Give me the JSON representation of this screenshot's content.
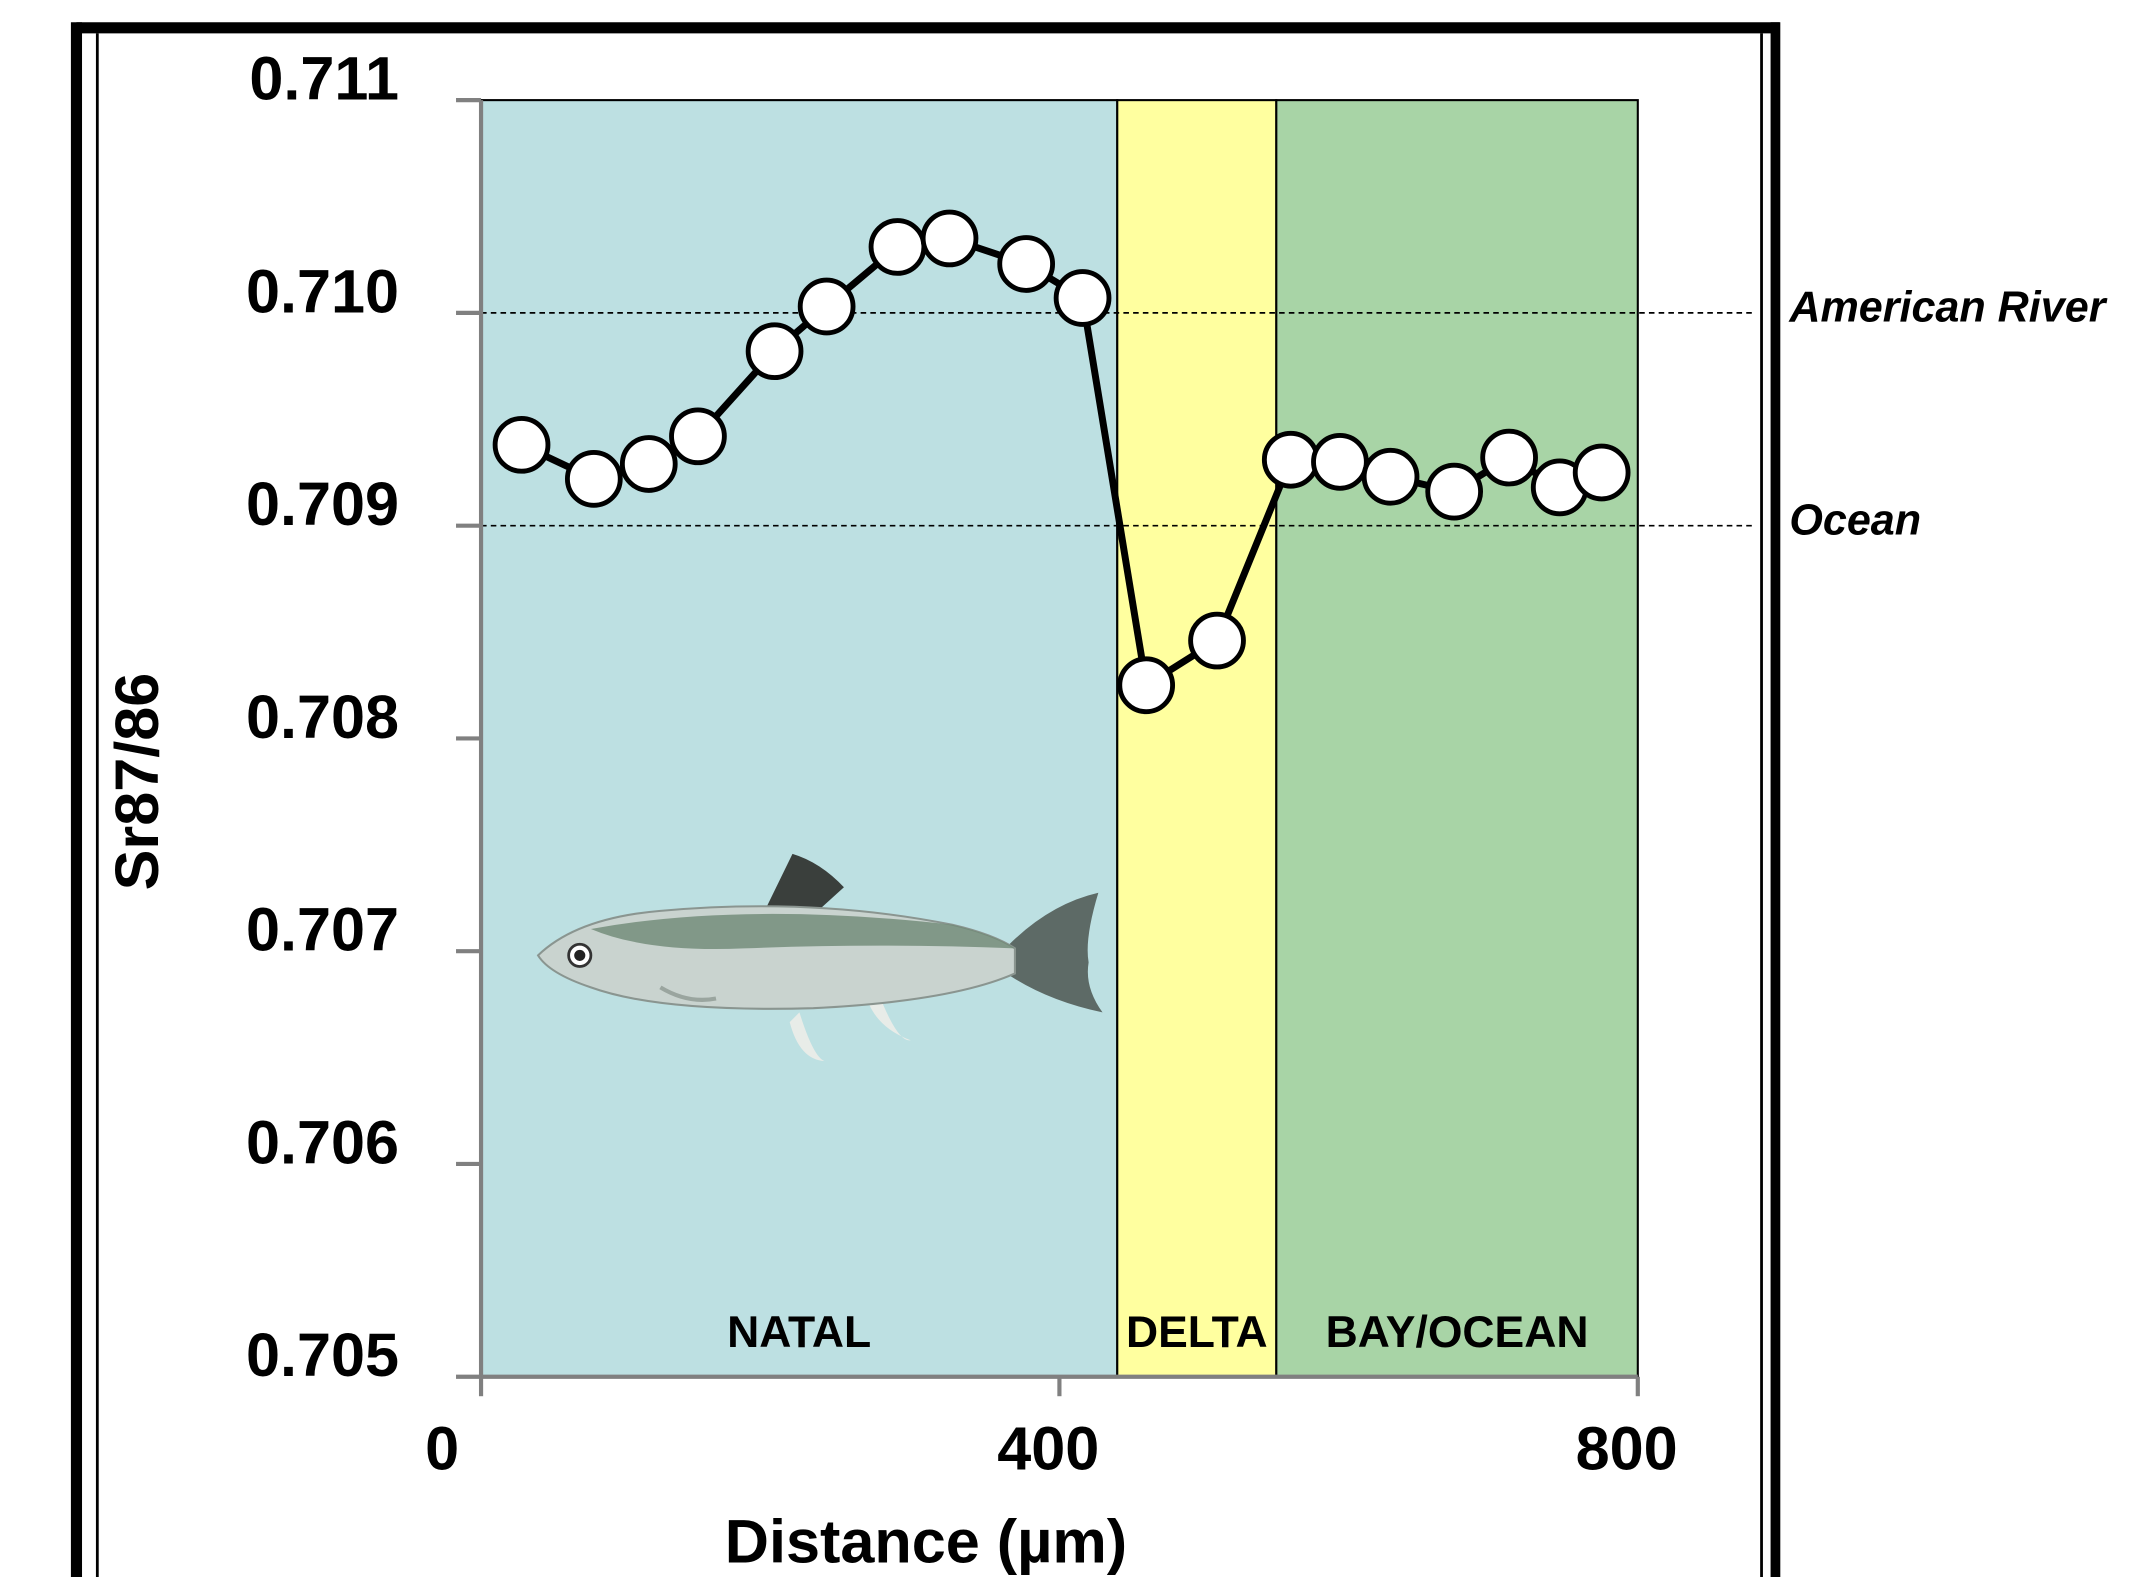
{
  "chart_data": {
    "type": "line",
    "xlabel": "Distance (µm)",
    "ylabel": "Sr87/86",
    "xlim": [
      0,
      800
    ],
    "ylim": [
      0.705,
      0.711
    ],
    "xticks": [
      0,
      400,
      800
    ],
    "yticks": [
      0.711,
      {
        "value": 0.71,
        "label": "0.710"
      },
      0.709,
      0.708,
      0.707,
      0.706,
      0.705
    ],
    "x": [
      28,
      78,
      116,
      150,
      203,
      239,
      288,
      324,
      377,
      416,
      460,
      509,
      560,
      594,
      629,
      673,
      711,
      746,
      775
    ],
    "values": [
      0.70938,
      0.70922,
      0.70929,
      0.70942,
      0.70982,
      0.71003,
      0.71031,
      0.71035,
      0.71023,
      0.71007,
      0.70825,
      0.70846,
      0.70931,
      0.7093,
      0.70923,
      0.70916,
      0.70932,
      0.70918,
      0.70925
    ],
    "color": "#000000",
    "marker_fill": "#ffffff",
    "regions": [
      {
        "label": "NATAL",
        "x": [
          0,
          440
        ],
        "color": "#bde0e2"
      },
      {
        "label": "DELTA",
        "x": [
          440,
          550
        ],
        "color": "#ffff9f"
      },
      {
        "label": "BAY/OCEAN",
        "x": [
          550,
          800
        ],
        "color": "#a8d4a6"
      }
    ],
    "reference_lines": [
      {
        "label": "American River",
        "value": 0.71
      },
      {
        "label": "Ocean",
        "value": 0.709
      }
    ]
  }
}
